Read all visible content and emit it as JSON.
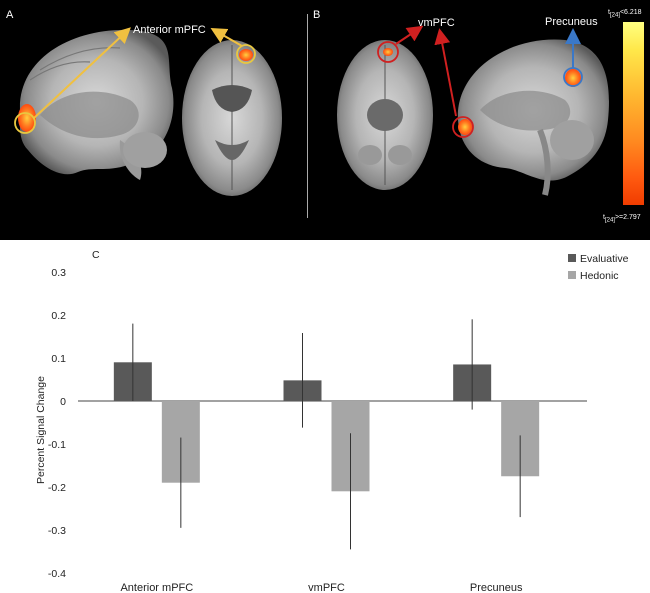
{
  "figure": {
    "panel_a_letter": "A",
    "panel_b_letter": "B",
    "panel_c_letter": "C",
    "brain_labels": {
      "anterior_mpfc": "Anterior mPFC",
      "vmpfc": "vmPFC",
      "precuneus": "Precuneus"
    },
    "colorbar": {
      "max_label": "t[24]<6.218",
      "min_label": "t[24]>=2.797"
    }
  },
  "chart_data": {
    "type": "bar",
    "categories": [
      "Anterior mPFC",
      "vmPFC",
      "Precuneus"
    ],
    "series": [
      {
        "name": "Evaluative",
        "values": [
          0.09,
          0.048,
          0.085
        ],
        "errors": [
          0.09,
          0.11,
          0.105
        ],
        "color": "#595959"
      },
      {
        "name": "Hedonic",
        "values": [
          -0.19,
          -0.21,
          -0.175
        ],
        "errors": [
          0.105,
          0.135,
          0.095
        ],
        "color": "#a6a6a6"
      }
    ],
    "ylabel": "Percent Signal Change",
    "xlabel": "",
    "ylim": [
      -0.4,
      0.3
    ],
    "yticks": [
      "0.3",
      "0.2",
      "0.1",
      "0",
      "-0.1",
      "-0.2",
      "-0.3",
      "-0.4"
    ],
    "legend_position": "top-right",
    "grid": false
  }
}
